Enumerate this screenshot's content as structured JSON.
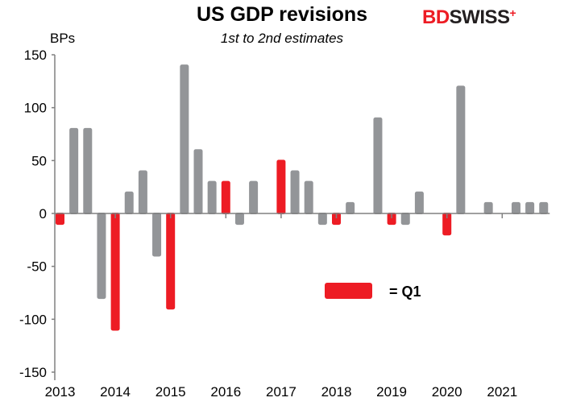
{
  "chart_data": {
    "type": "bar",
    "title": "US GDP revisions",
    "subtitle": "1st to 2nd estimates",
    "ylabel": "BPs",
    "xlabel": "",
    "ylim": [
      -150,
      150
    ],
    "yticks": [
      150,
      100,
      50,
      0,
      -50,
      -100,
      -150
    ],
    "xtick_labels": [
      "2013",
      "2014",
      "2015",
      "2016",
      "2017",
      "2018",
      "2019",
      "2020",
      "2021"
    ],
    "categories": [
      "2013Q1",
      "2013Q2",
      "2013Q3",
      "2013Q4",
      "2014Q1",
      "2014Q2",
      "2014Q3",
      "2014Q4",
      "2015Q1",
      "2015Q2",
      "2015Q3",
      "2015Q4",
      "2016Q1",
      "2016Q2",
      "2016Q3",
      "2016Q4",
      "2017Q1",
      "2017Q2",
      "2017Q3",
      "2017Q4",
      "2018Q1",
      "2018Q2",
      "2018Q3",
      "2018Q4",
      "2019Q1",
      "2019Q2",
      "2019Q3",
      "2019Q4",
      "2020Q1",
      "2020Q2",
      "2020Q3",
      "2020Q4",
      "2021Q1",
      "2021Q2",
      "2021Q3",
      "2021Q4"
    ],
    "values": [
      -10,
      80,
      80,
      -80,
      -110,
      20,
      40,
      -40,
      -90,
      140,
      60,
      30,
      30,
      -10,
      30,
      0,
      50,
      40,
      30,
      -10,
      -10,
      10,
      0,
      90,
      -10,
      -10,
      20,
      0,
      -20,
      120,
      0,
      10,
      0,
      10,
      10,
      10
    ],
    "colors": {
      "q1": "#ed1c24",
      "other": "#939598",
      "axis": "#808080"
    },
    "legend": {
      "label": "= Q1",
      "placement": "center-right"
    },
    "grid": false
  },
  "logo": {
    "text_bd": "BD",
    "text_swiss": "SWISS"
  }
}
